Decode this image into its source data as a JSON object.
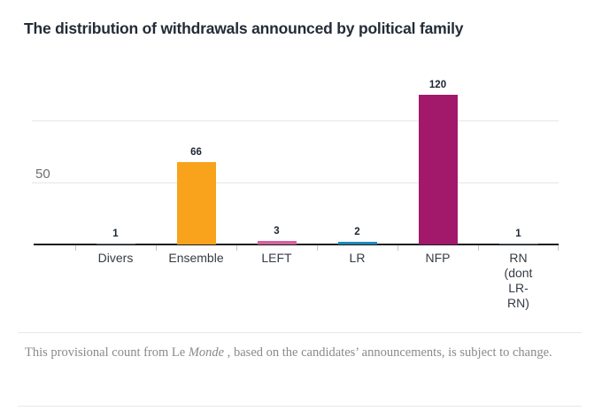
{
  "chart_data": {
    "type": "bar",
    "title": "The distribution of withdrawals announced by political family",
    "categories": [
      "Divers",
      "Ensemble",
      "LEFT",
      "LR",
      "NFP",
      "RN (dont LR-RN)"
    ],
    "category_label_lines": [
      [
        "Divers"
      ],
      [
        "Ensemble"
      ],
      [
        "LEFT"
      ],
      [
        "LR"
      ],
      [
        "NFP"
      ],
      [
        "RN",
        "(dont",
        "LR-",
        "RN)"
      ]
    ],
    "values": [
      1,
      66,
      3,
      2,
      120,
      1
    ],
    "bar_colors": [
      "#55606a",
      "#f9a21b",
      "#d2639e",
      "#1d8abd",
      "#a2186b",
      "#55606a"
    ],
    "xlabel": "",
    "ylabel": "",
    "y_axis": {
      "tick_label": "50",
      "gridlines": [
        50,
        100
      ],
      "ylim": [
        0,
        155
      ],
      "grid": true
    },
    "legend": "none"
  },
  "footer": {
    "prefix": "This provisional count from Le ",
    "italic": "Monde",
    "suffix": " , based on the candidates’ announcements, is subject to change."
  },
  "colors": {
    "orange": "#f9a21b",
    "pink": "#d2639e",
    "blue": "#1d8abd",
    "magenta": "#a2186b",
    "title_text": "#232c37",
    "axis_text": "#353c45",
    "muted_text": "#8a8a8a",
    "gridline": "#e6e6e6",
    "axis_line": "#1a1b1d"
  }
}
